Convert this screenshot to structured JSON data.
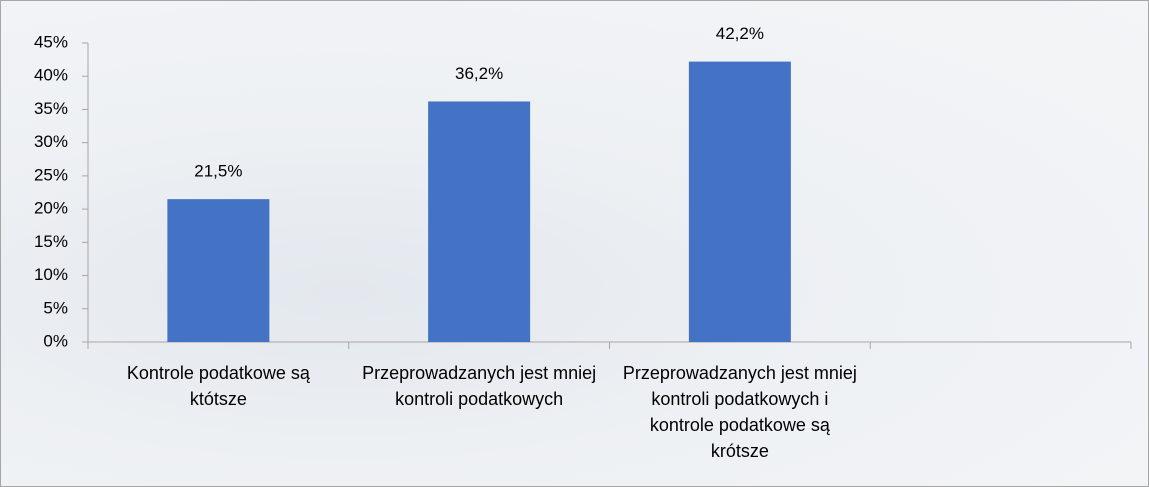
{
  "chart_data": {
    "type": "bar",
    "categories": [
      "Kontrole podatkowe są któtsze",
      "Przeprowadzanych jest mniej kontroli podatkowych",
      "Przeprowadzanych jest mniej kontroli podatkowych i kontrole podatkowe są krótsze",
      null
    ],
    "values": [
      21.5,
      36.2,
      42.2,
      null
    ],
    "value_labels": [
      "21,5%",
      "36,2%",
      "42,2%",
      null
    ],
    "color": "#4472c4",
    "ylim": [
      0,
      45
    ],
    "yticks": [
      {
        "value": 0,
        "label": "0%"
      },
      {
        "value": 5,
        "label": "5%"
      },
      {
        "value": 10,
        "label": "10%"
      },
      {
        "value": 15,
        "label": "15%"
      },
      {
        "value": 20,
        "label": "20%"
      },
      {
        "value": 25,
        "label": "25%"
      },
      {
        "value": 30,
        "label": "30%"
      },
      {
        "value": 35,
        "label": "35%"
      },
      {
        "value": 40,
        "label": "40%"
      },
      {
        "value": 45,
        "label": "45%"
      }
    ]
  }
}
